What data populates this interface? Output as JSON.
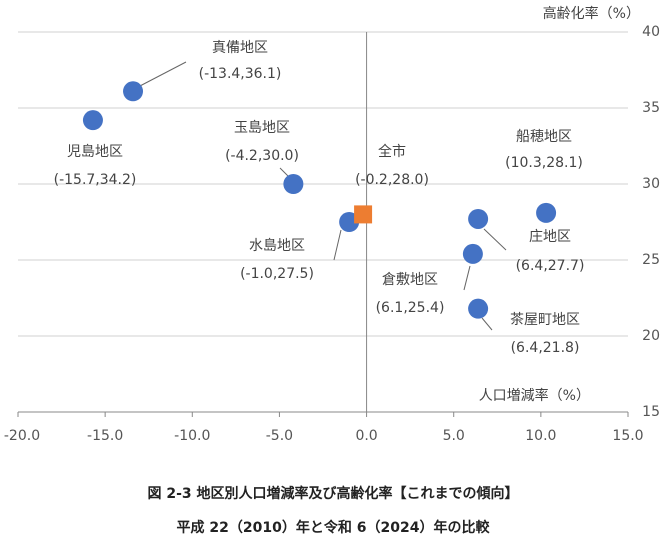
{
  "chart_data": {
    "type": "scatter",
    "title": "図 2-3  地区別人口増減率及び高齢化率【これまでの傾向】",
    "subtitle": "平成 22（2010）年と令和 6（2024）年の比較",
    "x_label": "人口増減率（%）",
    "y_label": "高齢化率（%）",
    "xlim": [
      -20,
      15
    ],
    "ylim": [
      15,
      40
    ],
    "xticks": [
      {
        "value": -20,
        "label": "-20.0"
      },
      {
        "value": -15,
        "label": "-15.0"
      },
      {
        "value": -10,
        "label": "-10.0"
      },
      {
        "value": -5,
        "label": "-5.0"
      },
      {
        "value": 0,
        "label": "0.0"
      },
      {
        "value": 5,
        "label": "5.0"
      },
      {
        "value": 10,
        "label": "10.0"
      },
      {
        "value": 15,
        "label": "15.0"
      }
    ],
    "yticks": [
      15,
      20,
      25,
      30,
      35,
      40
    ],
    "grid": true,
    "series": [
      {
        "color": "#4472c4",
        "marker": "circle",
        "labels": [
          "真備地区",
          "児島地区",
          "玉島地区",
          "水島地区",
          "船穂地区",
          "庄地区",
          "倉敷地区",
          "茶屋町地区"
        ],
        "x": [
          -13.4,
          -15.7,
          -4.2,
          -1.0,
          10.3,
          6.4,
          6.1,
          6.4
        ],
        "values": [
          36.1,
          34.2,
          30.0,
          27.5,
          28.1,
          27.7,
          25.4,
          21.8
        ],
        "value_labels": [
          "(-13.4,36.1)",
          "(-15.7,34.2)",
          "(-4.2,30.0)",
          "(-1.0,27.5)",
          "(10.3,28.1)",
          "(6.4,27.7)",
          "(6.1,25.4)",
          "(6.4,21.8)"
        ]
      },
      {
        "color": "#ed7d31",
        "marker": "square",
        "labels": [
          "全市"
        ],
        "x": [
          -0.2
        ],
        "values": [
          28.0
        ],
        "value_labels": [
          "(-0.2,28.0)"
        ]
      }
    ]
  }
}
